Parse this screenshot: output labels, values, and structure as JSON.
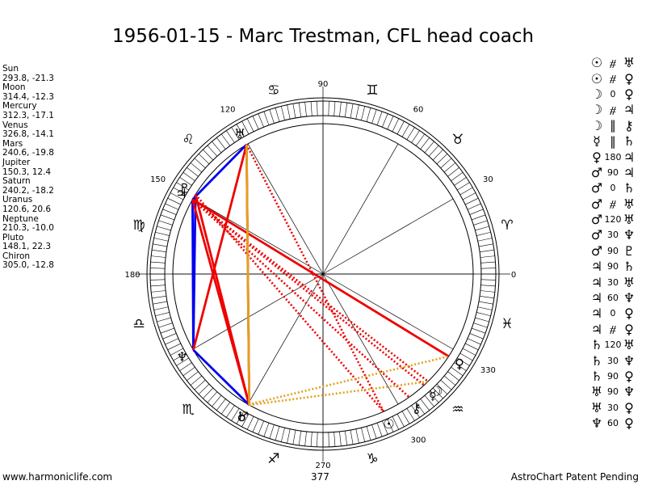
{
  "title": "1956-01-15 - Marc Trestman, CFL head coach",
  "planets": [
    {
      "name": "Sun",
      "pos": "293.8, -21.3",
      "glyph": "☉",
      "lon": 293.8
    },
    {
      "name": "Moon",
      "pos": "314.4, -12.3",
      "glyph": "☽",
      "lon": 314.4
    },
    {
      "name": "Mercury",
      "pos": "312.3, -17.1",
      "glyph": "☿",
      "lon": 312.3
    },
    {
      "name": "Venus",
      "pos": "326.8, -14.1",
      "glyph": "♀",
      "lon": 326.8
    },
    {
      "name": "Mars",
      "pos": "240.6, -19.8",
      "glyph": "♂",
      "lon": 240.6
    },
    {
      "name": "Jupiter",
      "pos": "150.3, 12.4",
      "glyph": "♃",
      "lon": 150.3
    },
    {
      "name": "Saturn",
      "pos": "240.2, -18.2",
      "glyph": "♄",
      "lon": 240.2
    },
    {
      "name": "Uranus",
      "pos": "120.6, 20.6",
      "glyph": "♅",
      "lon": 120.6
    },
    {
      "name": "Neptune",
      "pos": "210.3, -10.0",
      "glyph": "♆",
      "lon": 210.3
    },
    {
      "name": "Pluto",
      "pos": "148.1, 22.3",
      "glyph": "♇",
      "lon": 148.1
    },
    {
      "name": "Chiron",
      "pos": "305.0, -12.8",
      "glyph": "⚷",
      "lon": 305.0
    }
  ],
  "degree_labels": [
    {
      "text": "90",
      "deg": 90
    },
    {
      "text": "60",
      "deg": 60
    },
    {
      "text": "30",
      "deg": 30
    },
    {
      "text": "0",
      "deg": 0
    },
    {
      "text": "330",
      "deg": 330
    },
    {
      "text": "300",
      "deg": 300
    },
    {
      "text": "270",
      "deg": 270
    },
    {
      "text": "120",
      "deg": 120
    },
    {
      "text": "150",
      "deg": 150
    },
    {
      "text": "180",
      "deg": 180
    }
  ],
  "zodiac_signs": [
    {
      "glyph": "♈",
      "deg": 15
    },
    {
      "glyph": "♉",
      "deg": 45
    },
    {
      "glyph": "♊",
      "deg": 75
    },
    {
      "glyph": "♋",
      "deg": 105
    },
    {
      "glyph": "♌",
      "deg": 135
    },
    {
      "glyph": "♍",
      "deg": 165
    },
    {
      "glyph": "♎",
      "deg": 195
    },
    {
      "glyph": "♏",
      "deg": 225
    },
    {
      "glyph": "♐",
      "deg": 255
    },
    {
      "glyph": "♑",
      "deg": 285
    },
    {
      "glyph": "♒",
      "deg": 315
    },
    {
      "glyph": "♓",
      "deg": 345
    }
  ],
  "aspect_lines": [
    {
      "a": "Uranus",
      "b": "Jupiter",
      "color": "#0000ee",
      "style": "solid"
    },
    {
      "a": "Jupiter",
      "b": "Neptune",
      "color": "#0000ee",
      "style": "solid"
    },
    {
      "a": "Pluto",
      "b": "Neptune",
      "color": "#0000ee",
      "style": "solid"
    },
    {
      "a": "Neptune",
      "b": "Mars",
      "color": "#0000ee",
      "style": "solid"
    },
    {
      "a": "Uranus",
      "b": "Neptune",
      "color": "#ee0000",
      "style": "solid"
    },
    {
      "a": "Uranus",
      "b": "Mars",
      "color": "#ee0000",
      "style": "solid"
    },
    {
      "a": "Jupiter",
      "b": "Mars",
      "color": "#ee0000",
      "style": "solid"
    },
    {
      "a": "Pluto",
      "b": "Mars",
      "color": "#ee0000",
      "style": "solid"
    },
    {
      "a": "Jupiter",
      "b": "Venus",
      "color": "#ee0000",
      "style": "solid"
    },
    {
      "a": "Mars",
      "b": "Uranus",
      "color": "#ee0000",
      "style": "dotted"
    },
    {
      "a": "Jupiter",
      "b": "Mercury",
      "color": "#ee0000",
      "style": "dotted"
    },
    {
      "a": "Jupiter",
      "b": "Moon",
      "color": "#ee0000",
      "style": "dotted"
    },
    {
      "a": "Pluto",
      "b": "Sun",
      "color": "#ee0000",
      "style": "dotted"
    },
    {
      "a": "Jupiter",
      "b": "Chiron",
      "color": "#ee0000",
      "style": "dotted"
    },
    {
      "a": "Uranus",
      "b": "Sun",
      "color": "#ee0000",
      "style": "dotted"
    },
    {
      "a": "Mars",
      "b": "Uranus",
      "color": "#e2a020",
      "style": "solid"
    },
    {
      "a": "Mars",
      "b": "Moon",
      "color": "#e2a020",
      "style": "dotted"
    },
    {
      "a": "Saturn",
      "b": "Venus",
      "color": "#e2a020",
      "style": "dotted"
    }
  ],
  "aspects": [
    {
      "p1": "☉",
      "asp": "#",
      "p2": "♅"
    },
    {
      "p1": "☉",
      "asp": "#",
      "p2": "♀"
    },
    {
      "p1": "☽",
      "asp": "0",
      "p2": "♀"
    },
    {
      "p1": "☽",
      "asp": "#",
      "p2": "♃"
    },
    {
      "p1": "☽",
      "asp": "||",
      "p2": "⚷"
    },
    {
      "p1": "☿",
      "asp": "||",
      "p2": "♄"
    },
    {
      "p1": "♀",
      "asp": "180",
      "p2": "♃"
    },
    {
      "p1": "♂",
      "asp": "90",
      "p2": "♃"
    },
    {
      "p1": "♂",
      "asp": "0",
      "p2": "♄"
    },
    {
      "p1": "♂",
      "asp": "#",
      "p2": "♅"
    },
    {
      "p1": "♂",
      "asp": "120",
      "p2": "♅"
    },
    {
      "p1": "♂",
      "asp": "30",
      "p2": "♆"
    },
    {
      "p1": "♂",
      "asp": "90",
      "p2": "♇"
    },
    {
      "p1": "♃",
      "asp": "90",
      "p2": "♄"
    },
    {
      "p1": "♃",
      "asp": "30",
      "p2": "♅"
    },
    {
      "p1": "♃",
      "asp": "60",
      "p2": "♆"
    },
    {
      "p1": "♃",
      "asp": "0",
      "p2": "♀"
    },
    {
      "p1": "♃",
      "asp": "#",
      "p2": "♀"
    },
    {
      "p1": "♄",
      "asp": "120",
      "p2": "♅"
    },
    {
      "p1": "♄",
      "asp": "30",
      "p2": "♆"
    },
    {
      "p1": "♄",
      "asp": "90",
      "p2": "♀"
    },
    {
      "p1": "♅",
      "asp": "90",
      "p2": "♆"
    },
    {
      "p1": "♅",
      "asp": "30",
      "p2": "♀"
    },
    {
      "p1": "♆",
      "asp": "60",
      "p2": "♀"
    }
  ],
  "footer": {
    "left": "www.harmoniclife.com",
    "middle": "377",
    "right": "AstroChart Patent Pending"
  }
}
